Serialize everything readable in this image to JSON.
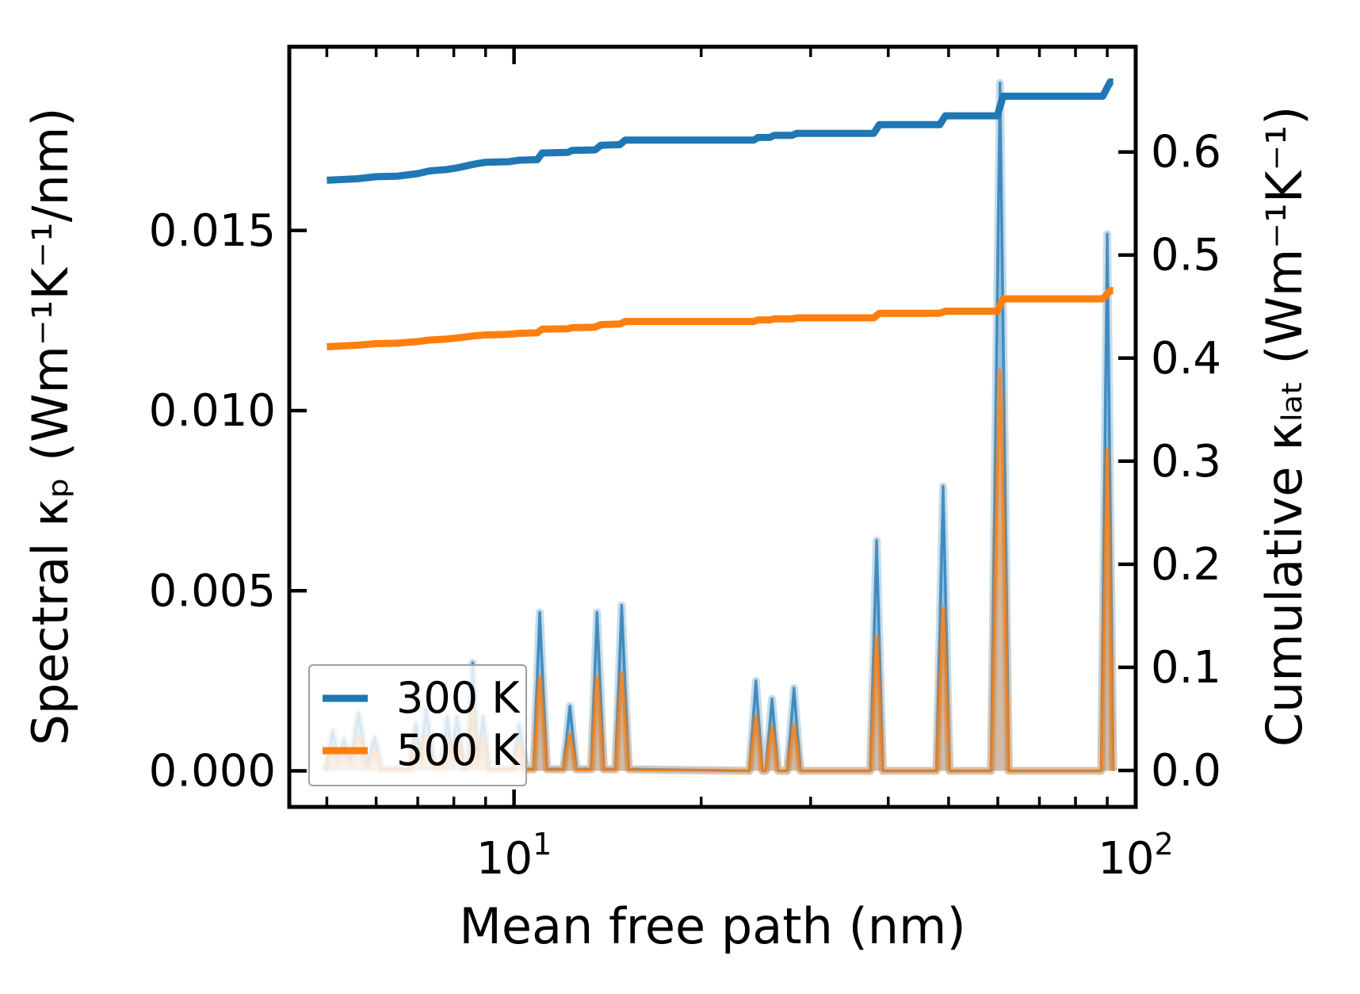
{
  "legend": {
    "entries": [
      {
        "label": "300 K",
        "color": "#1f77b4"
      },
      {
        "label": "500 K",
        "color": "#ff7f0e"
      }
    ]
  },
  "chart_data": {
    "type": "line",
    "title": "",
    "xlabel": "Mean free path (nm)",
    "ylabel_left": "Spectral κₚ (Wm⁻¹K⁻¹/nm)",
    "ylabel_right": "Cumulative κₗₐₜ (Wm⁻¹K⁻¹)",
    "x_scale": "log",
    "xlim": [
      4.35,
      100
    ],
    "ylim_left": [
      -0.001,
      0.0201
    ],
    "ylim_right": [
      -0.0354,
      0.702
    ],
    "grid": false,
    "legend_position": "lower left",
    "xticks": {
      "major": [
        {
          "value": 10,
          "base": "10",
          "exp": "1"
        },
        {
          "value": 100,
          "base": "10",
          "exp": "2"
        }
      ],
      "minor": [
        5,
        6,
        7,
        8,
        9,
        20,
        30,
        40,
        50,
        60,
        70,
        80,
        90
      ]
    },
    "yticks_left": [
      {
        "value": 0.0,
        "label": "0.000"
      },
      {
        "value": 0.005,
        "label": "0.005"
      },
      {
        "value": 0.01,
        "label": "0.010"
      },
      {
        "value": 0.015,
        "label": "0.015"
      }
    ],
    "yticks_right": [
      {
        "value": 0.0,
        "label": "0.0"
      },
      {
        "value": 0.1,
        "label": "0.1"
      },
      {
        "value": 0.2,
        "label": "0.2"
      },
      {
        "value": 0.3,
        "label": "0.3"
      },
      {
        "value": 0.4,
        "label": "0.4"
      },
      {
        "value": 0.5,
        "label": "0.5"
      },
      {
        "value": 0.6,
        "label": "0.6"
      }
    ],
    "series": [
      {
        "name": "300 K spectral",
        "axis": "left",
        "style": "area",
        "color": "#1f77b4",
        "points": [
          [
            4.97,
            0
          ],
          [
            5.02,
            0.0004
          ],
          [
            5.11,
            0.0011
          ],
          [
            5.2,
            0.0004
          ],
          [
            5.33,
            0.00086
          ],
          [
            5.46,
            0.0003
          ],
          [
            5.62,
            0.0016
          ],
          [
            5.8,
            0.0002
          ],
          [
            5.97,
            0.00092
          ],
          [
            6.12,
            5e-05
          ],
          [
            6.8,
            5e-05
          ],
          [
            6.95,
            0.0013
          ],
          [
            7.08,
            0.0004
          ],
          [
            7.22,
            0.0017
          ],
          [
            7.45,
            0.0001
          ],
          [
            7.66,
            0.0002
          ],
          [
            7.81,
            0.0015
          ],
          [
            7.95,
            0.0005
          ],
          [
            8.1,
            0.0015
          ],
          [
            8.32,
            0.0001
          ],
          [
            8.45,
            0.0002
          ],
          [
            8.58,
            0.003
          ],
          [
            8.74,
            0.0004
          ],
          [
            8.92,
            0.0015
          ],
          [
            9.12,
            5e-05
          ],
          [
            9.95,
            5e-05
          ],
          [
            10.2,
            0.0013
          ],
          [
            10.45,
            5e-05
          ],
          [
            10.75,
            5e-05
          ],
          [
            11.0,
            0.0044
          ],
          [
            11.3,
            5e-05
          ],
          [
            12.0,
            5e-05
          ],
          [
            12.3,
            0.0018
          ],
          [
            12.6,
            5e-05
          ],
          [
            13.3,
            5e-05
          ],
          [
            13.6,
            0.0044
          ],
          [
            13.95,
            5e-05
          ],
          [
            14.55,
            5e-05
          ],
          [
            14.9,
            0.0046
          ],
          [
            15.3,
            5e-05
          ],
          [
            23.9,
            0
          ],
          [
            24.5,
            0.0025
          ],
          [
            25.1,
            0
          ],
          [
            25.4,
            0
          ],
          [
            26.0,
            0.002
          ],
          [
            26.6,
            0
          ],
          [
            27.5,
            0
          ],
          [
            28.2,
            0.0023
          ],
          [
            28.9,
            0
          ],
          [
            37.4,
            0
          ],
          [
            38.3,
            0.0064
          ],
          [
            39.2,
            0
          ],
          [
            47.8,
            0
          ],
          [
            49.0,
            0.0079
          ],
          [
            50.2,
            0
          ],
          [
            58.5,
            0
          ],
          [
            60.5,
            0.0191
          ],
          [
            62.5,
            0
          ],
          [
            88.0,
            0
          ],
          [
            90.0,
            0.0149
          ],
          [
            92.0,
            0
          ]
        ]
      },
      {
        "name": "500 K spectral",
        "axis": "left",
        "style": "area",
        "color": "#ff7f0e",
        "points": [
          [
            4.97,
            0
          ],
          [
            5.02,
            0.00025
          ],
          [
            5.11,
            0.00066
          ],
          [
            5.2,
            0.00025
          ],
          [
            5.33,
            0.0005
          ],
          [
            5.46,
            0.0002
          ],
          [
            5.62,
            0.00097
          ],
          [
            5.8,
            0.00012
          ],
          [
            5.97,
            0.0006
          ],
          [
            6.12,
            3e-05
          ],
          [
            6.8,
            3e-05
          ],
          [
            6.95,
            0.00075
          ],
          [
            7.08,
            0.00025
          ],
          [
            7.22,
            0.001
          ],
          [
            7.45,
            6e-05
          ],
          [
            7.66,
            0.00012
          ],
          [
            7.81,
            0.0009
          ],
          [
            7.95,
            0.0003
          ],
          [
            8.1,
            0.0009
          ],
          [
            8.32,
            6e-05
          ],
          [
            8.45,
            0.00012
          ],
          [
            8.58,
            0.00174
          ],
          [
            8.74,
            0.00025
          ],
          [
            8.92,
            0.0009
          ],
          [
            9.12,
            3e-05
          ],
          [
            9.95,
            3e-05
          ],
          [
            10.2,
            0.0008
          ],
          [
            10.45,
            3e-05
          ],
          [
            10.75,
            3e-05
          ],
          [
            11.0,
            0.0026
          ],
          [
            11.3,
            3e-05
          ],
          [
            12.0,
            3e-05
          ],
          [
            12.3,
            0.001
          ],
          [
            12.6,
            3e-05
          ],
          [
            13.3,
            3e-05
          ],
          [
            13.6,
            0.0026
          ],
          [
            13.95,
            3e-05
          ],
          [
            14.55,
            3e-05
          ],
          [
            14.9,
            0.0027
          ],
          [
            15.3,
            3e-05
          ],
          [
            23.9,
            0
          ],
          [
            24.5,
            0.0015
          ],
          [
            25.1,
            0
          ],
          [
            25.4,
            0
          ],
          [
            26.0,
            0.0012
          ],
          [
            26.6,
            0
          ],
          [
            27.5,
            0
          ],
          [
            28.2,
            0.00125
          ],
          [
            28.9,
            0
          ],
          [
            37.4,
            0
          ],
          [
            38.3,
            0.0037
          ],
          [
            39.2,
            0
          ],
          [
            47.8,
            0
          ],
          [
            49.0,
            0.0045
          ],
          [
            50.2,
            0
          ],
          [
            58.5,
            0
          ],
          [
            60.5,
            0.0111
          ],
          [
            62.5,
            0
          ],
          [
            88.0,
            0
          ],
          [
            90.0,
            0.0089
          ],
          [
            92.0,
            0
          ]
        ]
      },
      {
        "name": "300 K cumulative",
        "axis": "right",
        "style": "line",
        "color": "#1f77b4",
        "points": [
          [
            5.0,
            0.5725
          ],
          [
            5.6,
            0.574
          ],
          [
            6.0,
            0.576
          ],
          [
            6.5,
            0.5765
          ],
          [
            7.0,
            0.579
          ],
          [
            7.3,
            0.5815
          ],
          [
            7.8,
            0.583
          ],
          [
            8.1,
            0.5845
          ],
          [
            8.6,
            0.588
          ],
          [
            9.0,
            0.59
          ],
          [
            9.8,
            0.5905
          ],
          [
            10.2,
            0.592
          ],
          [
            10.9,
            0.5925
          ],
          [
            11.1,
            0.599
          ],
          [
            12.2,
            0.5995
          ],
          [
            12.4,
            0.6015
          ],
          [
            13.5,
            0.602
          ],
          [
            13.8,
            0.6065
          ],
          [
            14.8,
            0.607
          ],
          [
            15.1,
            0.6115
          ],
          [
            24.3,
            0.6115
          ],
          [
            24.7,
            0.614
          ],
          [
            25.8,
            0.614
          ],
          [
            26.2,
            0.616
          ],
          [
            28.0,
            0.616
          ],
          [
            28.5,
            0.618
          ],
          [
            37.9,
            0.618
          ],
          [
            38.7,
            0.6265
          ],
          [
            48.4,
            0.6265
          ],
          [
            49.4,
            0.635
          ],
          [
            59.9,
            0.635
          ],
          [
            61.2,
            0.654
          ],
          [
            88.5,
            0.654
          ],
          [
            91.0,
            0.668
          ],
          [
            92.0,
            0.668
          ]
        ]
      },
      {
        "name": "500 K cumulative",
        "axis": "right",
        "style": "line",
        "color": "#ff7f0e",
        "points": [
          [
            5.0,
            0.411
          ],
          [
            5.6,
            0.4125
          ],
          [
            6.0,
            0.414
          ],
          [
            6.5,
            0.4145
          ],
          [
            7.0,
            0.416
          ],
          [
            7.3,
            0.4175
          ],
          [
            7.8,
            0.4185
          ],
          [
            8.1,
            0.4195
          ],
          [
            8.6,
            0.4215
          ],
          [
            9.0,
            0.4225
          ],
          [
            9.8,
            0.423
          ],
          [
            10.2,
            0.424
          ],
          [
            10.9,
            0.4245
          ],
          [
            11.1,
            0.428
          ],
          [
            12.2,
            0.4285
          ],
          [
            12.4,
            0.4295
          ],
          [
            13.5,
            0.43
          ],
          [
            13.8,
            0.4325
          ],
          [
            14.8,
            0.433
          ],
          [
            15.1,
            0.4355
          ],
          [
            24.3,
            0.4355
          ],
          [
            24.7,
            0.437
          ],
          [
            25.8,
            0.437
          ],
          [
            26.2,
            0.438
          ],
          [
            28.0,
            0.438
          ],
          [
            28.5,
            0.439
          ],
          [
            37.9,
            0.439
          ],
          [
            38.7,
            0.4435
          ],
          [
            48.4,
            0.4435
          ],
          [
            49.4,
            0.4455
          ],
          [
            59.9,
            0.4455
          ],
          [
            61.2,
            0.4575
          ],
          [
            88.5,
            0.4575
          ],
          [
            91.0,
            0.4655
          ],
          [
            92.0,
            0.4655
          ]
        ]
      }
    ]
  }
}
